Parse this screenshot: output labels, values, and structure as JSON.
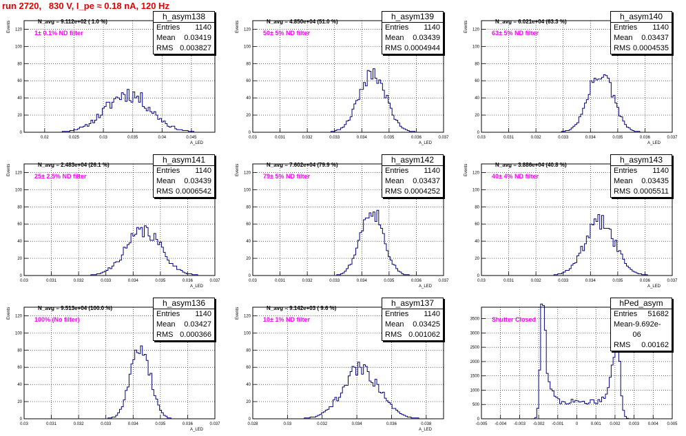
{
  "run_title": "run 2720,   830 V, I_pe ≈ 0.18 nA, 120 Hz",
  "chart_data": [
    {
      "type": "bar",
      "name": "h_asym138",
      "navg": "N_avg = 9.112e+02 ( 1.0 %)",
      "filter": "1± 0.1% ND filter",
      "stats": {
        "entries": "1140",
        "mean": "0.03419",
        "rms": "0.003827"
      },
      "xlim": [
        0.0165,
        0.049
      ],
      "ylim": [
        0,
        130
      ],
      "xticks": [
        "0.02",
        "0.025",
        "0.03",
        "0.035",
        "0.04",
        "0.045"
      ],
      "xtick_vals": [
        0.02,
        0.025,
        0.03,
        0.035,
        0.04,
        0.045
      ],
      "yticks": [
        "0",
        "20",
        "40",
        "60",
        "80",
        "100",
        "120"
      ],
      "ytick_vals": [
        0,
        20,
        40,
        60,
        80,
        100,
        120
      ],
      "ylabel": "Events",
      "xlabel": "A_LED",
      "mean": 0.03419,
      "sigma": 0.0038,
      "peak": 45,
      "noise": 0.45,
      "seed": 11
    },
    {
      "type": "bar",
      "name": "h_asym139",
      "navg": "N_avg = 4.850e+04 (51.0 %)",
      "filter": "50± 5% ND filter",
      "stats": {
        "entries": "1140",
        "mean": "0.03439",
        "rms": "0.0004944"
      },
      "xlim": [
        0.03,
        0.037
      ],
      "ylim": [
        0,
        130
      ],
      "xticks": [
        "0.03",
        "0.031",
        "0.032",
        "0.033",
        "0.034",
        "0.035",
        "0.036",
        "0.037"
      ],
      "xtick_vals": [
        0.03,
        0.031,
        0.032,
        0.033,
        0.034,
        0.035,
        0.036,
        0.037
      ],
      "yticks": [
        "0",
        "20",
        "40",
        "60",
        "80",
        "100",
        "120"
      ],
      "ytick_vals": [
        0,
        20,
        40,
        60,
        80,
        100,
        120
      ],
      "ylabel": "Events",
      "xlabel": "A_LED",
      "mean": 0.03439,
      "sigma": 0.00049,
      "peak": 70,
      "noise": 0.3,
      "seed": 21
    },
    {
      "type": "bar",
      "name": "h_asym140",
      "navg": "N_avg = 6.021e+04 (63.3 %)",
      "filter": "63± 5% ND filter",
      "stats": {
        "entries": "1140",
        "mean": "0.03437",
        "rms": "0.0004535"
      },
      "xlim": [
        0.03,
        0.037
      ],
      "ylim": [
        0,
        130
      ],
      "xticks": [
        "0.03",
        "0.031",
        "0.032",
        "0.033",
        "0.034",
        "0.035",
        "0.036",
        "0.037"
      ],
      "xtick_vals": [
        0.03,
        0.031,
        0.032,
        0.033,
        0.034,
        0.035,
        0.036,
        0.037
      ],
      "yticks": [
        "0",
        "20",
        "40",
        "60",
        "80",
        "100",
        "120"
      ],
      "ytick_vals": [
        0,
        20,
        40,
        60,
        80,
        100,
        120
      ],
      "ylabel": "Events",
      "xlabel": "A_LED",
      "mean": 0.03437,
      "sigma": 0.00045,
      "peak": 70,
      "noise": 0.3,
      "seed": 31
    },
    {
      "type": "bar",
      "name": "h_asym141",
      "navg": "N_avg = 2.483e+04 (26.1 %)",
      "filter": "25± 2.5% ND filter",
      "stats": {
        "entries": "1140",
        "mean": "0.03439",
        "rms": "0.0006542"
      },
      "xlim": [
        0.03,
        0.037
      ],
      "ylim": [
        0,
        130
      ],
      "xticks": [
        "0.03",
        "0.031",
        "0.032",
        "0.033",
        "0.034",
        "0.035",
        "0.036",
        "0.037"
      ],
      "xtick_vals": [
        0.03,
        0.031,
        0.032,
        0.033,
        0.034,
        0.035,
        0.036,
        0.037
      ],
      "yticks": [
        "0",
        "20",
        "40",
        "60",
        "80",
        "100",
        "120"
      ],
      "ytick_vals": [
        0,
        20,
        40,
        60,
        80,
        100,
        120
      ],
      "ylabel": "Events",
      "xlabel": "A_LED",
      "mean": 0.03439,
      "sigma": 0.00065,
      "peak": 52,
      "noise": 0.35,
      "seed": 41
    },
    {
      "type": "bar",
      "name": "h_asym142",
      "navg": "N_avg = 7.602e+04 (79.9 %)",
      "filter": "79± 5% ND filter",
      "stats": {
        "entries": "1140",
        "mean": "0.03437",
        "rms": "0.0004252"
      },
      "xlim": [
        0.03,
        0.037
      ],
      "ylim": [
        0,
        130
      ],
      "xticks": [
        "0.03",
        "0.031",
        "0.032",
        "0.033",
        "0.034",
        "0.035",
        "0.036",
        "0.037"
      ],
      "xtick_vals": [
        0.03,
        0.031,
        0.032,
        0.033,
        0.034,
        0.035,
        0.036,
        0.037
      ],
      "yticks": [
        "0",
        "20",
        "40",
        "60",
        "80",
        "100",
        "120"
      ],
      "ytick_vals": [
        0,
        20,
        40,
        60,
        80,
        100,
        120
      ],
      "ylabel": "Events",
      "xlabel": "A_LED",
      "mean": 0.03437,
      "sigma": 0.00042,
      "peak": 78,
      "noise": 0.3,
      "seed": 51
    },
    {
      "type": "bar",
      "name": "h_asym143",
      "navg": "N_avg = 3.886e+04 (40.8 %)",
      "filter": "40± 4% ND filter",
      "stats": {
        "entries": "1140",
        "mean": "0.03435",
        "rms": "0.0005511"
      },
      "xlim": [
        0.03,
        0.037
      ],
      "ylim": [
        0,
        130
      ],
      "xticks": [
        "0.03",
        "0.031",
        "0.032",
        "0.033",
        "0.034",
        "0.035",
        "0.036",
        "0.037"
      ],
      "xtick_vals": [
        0.03,
        0.031,
        0.032,
        0.033,
        0.034,
        0.035,
        0.036,
        0.037
      ],
      "yticks": [
        "0",
        "20",
        "40",
        "60",
        "80",
        "100",
        "120"
      ],
      "ytick_vals": [
        0,
        20,
        40,
        60,
        80,
        100,
        120
      ],
      "ylabel": "Events",
      "xlabel": "A_LED",
      "mean": 0.03435,
      "sigma": 0.00055,
      "peak": 62,
      "noise": 0.35,
      "seed": 61
    },
    {
      "type": "bar",
      "name": "h_asym136",
      "navg": "N_avg = 9.513e+04 (100.0 %)",
      "filter": "100% (No filter)",
      "stats": {
        "entries": "1140",
        "mean": "0.03427",
        "rms": "0.000366"
      },
      "xlim": [
        0.03,
        0.037
      ],
      "ylim": [
        0,
        130
      ],
      "xticks": [
        "0.03",
        "0.031",
        "0.032",
        "0.033",
        "0.034",
        "0.035",
        "0.036",
        "0.037"
      ],
      "xtick_vals": [
        0.03,
        0.031,
        0.032,
        0.033,
        0.034,
        0.035,
        0.036,
        0.037
      ],
      "yticks": [
        "0",
        "20",
        "40",
        "60",
        "80",
        "100",
        "120"
      ],
      "ytick_vals": [
        0,
        20,
        40,
        60,
        80,
        100,
        120
      ],
      "ylabel": "Events",
      "xlabel": "A_LED",
      "mean": 0.03427,
      "sigma": 0.00036,
      "peak": 85,
      "noise": 0.25,
      "seed": 71
    },
    {
      "type": "bar",
      "name": "h_asym137",
      "navg": "N_avg = 9.142e+03 ( 9.6 %)",
      "filter": "10± 1% ND filter",
      "stats": {
        "entries": "1140",
        "mean": "0.03425",
        "rms": "0.001062"
      },
      "xlim": [
        0.028,
        0.039
      ],
      "ylim": [
        0,
        130
      ],
      "xticks": [
        "0.028",
        "0.03",
        "0.032",
        "0.034",
        "0.036",
        "0.038"
      ],
      "xtick_vals": [
        0.028,
        0.03,
        0.032,
        0.034,
        0.036,
        0.038
      ],
      "yticks": [
        "0",
        "20",
        "40",
        "60",
        "80",
        "100",
        "120"
      ],
      "ytick_vals": [
        0,
        20,
        40,
        60,
        80,
        100,
        120
      ],
      "ylabel": "Events",
      "xlabel": "A_LED",
      "mean": 0.03425,
      "sigma": 0.00106,
      "peak": 58,
      "noise": 0.35,
      "seed": 81
    },
    {
      "type": "bar",
      "name": "hPed_asym",
      "navg": "",
      "filter": "Shutter Closed",
      "stats": {
        "entries": "51682",
        "mean": "-9.692e-06",
        "rms": "0.00162"
      },
      "xlim": [
        -0.005,
        0.005
      ],
      "ylim": [
        0,
        3900
      ],
      "xticks": [
        "-0.005",
        "-0.004",
        "-0.003",
        "-0.002",
        "-0.001",
        "0",
        "0.001",
        "0.002",
        "0.003",
        "0.004",
        "0.005"
      ],
      "xtick_vals": [
        -0.005,
        -0.004,
        -0.003,
        -0.002,
        -0.001,
        0,
        0.001,
        0.002,
        0.003,
        0.004,
        0.005
      ],
      "yticks": [
        "0",
        "500",
        "1000",
        "1500",
        "2000",
        "2500",
        "3000",
        "3500"
      ],
      "ytick_vals": [
        0,
        500,
        1000,
        1500,
        2000,
        2500,
        3000,
        3500
      ],
      "ylabel": "",
      "xlabel": "",
      "mean": 0,
      "sigma": 0,
      "peak": 0,
      "noise": 0,
      "seed": 91,
      "pedestal": true
    }
  ]
}
